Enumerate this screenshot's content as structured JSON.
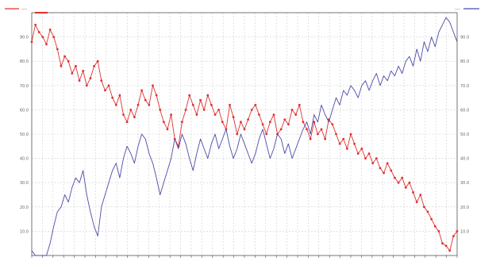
{
  "chart_data": {
    "type": "line",
    "legend": {
      "left_label": "----",
      "right_label": "----",
      "placement": "top"
    },
    "y_left_ticks": [
      "10.0",
      "20.0",
      "30.0",
      "40.0",
      "50.0",
      "60.0",
      "70.0",
      "80.0",
      "90.0"
    ],
    "y_right_ticks": [
      "10.0",
      "20.0",
      "30.0",
      "40.0",
      "50.0",
      "60.0",
      "70.0",
      "80.0",
      "90.0"
    ],
    "x_tick_count": 40,
    "x_last_label": "",
    "ylim": [
      0,
      100
    ],
    "grid": true,
    "colors": {
      "series_red": "#e03030",
      "series_blue": "#4a4aa8",
      "grid": "#d0d0d0",
      "axis": "#555555"
    },
    "series": [
      {
        "values": [
          88,
          95,
          92,
          90,
          87,
          93,
          90,
          85,
          78,
          82,
          80,
          75,
          78,
          72,
          76,
          70,
          73,
          78,
          80,
          72,
          68,
          70,
          65,
          62,
          66,
          58,
          55,
          60,
          57,
          62,
          68,
          64,
          62,
          70,
          66,
          60,
          55,
          52,
          58,
          48,
          45,
          55,
          60,
          66,
          62,
          58,
          64,
          60,
          66,
          62,
          58,
          60,
          55,
          52,
          62,
          57,
          50,
          55,
          52,
          56,
          60,
          62,
          58,
          54,
          50,
          55,
          58,
          50,
          52,
          56,
          54,
          60,
          58,
          62,
          55,
          52,
          48,
          55,
          50,
          52,
          48,
          56,
          54,
          50,
          46,
          48,
          44,
          50,
          46,
          42,
          44,
          40,
          42,
          38,
          40,
          36,
          34,
          38,
          35,
          32,
          30,
          32,
          28,
          30,
          26,
          22,
          25,
          20,
          18,
          15,
          12,
          10,
          5,
          4,
          2,
          8,
          10
        ]
      },
      {
        "values": [
          2,
          0,
          0,
          0,
          0,
          5,
          12,
          18,
          20,
          25,
          22,
          28,
          32,
          30,
          35,
          25,
          18,
          12,
          8,
          20,
          25,
          30,
          35,
          38,
          32,
          40,
          45,
          42,
          38,
          45,
          50,
          48,
          42,
          38,
          32,
          25,
          30,
          35,
          40,
          48,
          44,
          50,
          46,
          40,
          35,
          42,
          48,
          44,
          40,
          46,
          50,
          44,
          48,
          52,
          45,
          40,
          44,
          50,
          46,
          42,
          38,
          42,
          48,
          52,
          46,
          40,
          44,
          50,
          48,
          42,
          46,
          40,
          44,
          48,
          52,
          55,
          50,
          58,
          55,
          62,
          58,
          55,
          60,
          65,
          62,
          68,
          66,
          70,
          68,
          65,
          70,
          72,
          68,
          72,
          75,
          70,
          74,
          72,
          76,
          74,
          78,
          75,
          80,
          82,
          78,
          85,
          80,
          88,
          84,
          90,
          86,
          92,
          95,
          98,
          96,
          92,
          88
        ]
      }
    ]
  }
}
